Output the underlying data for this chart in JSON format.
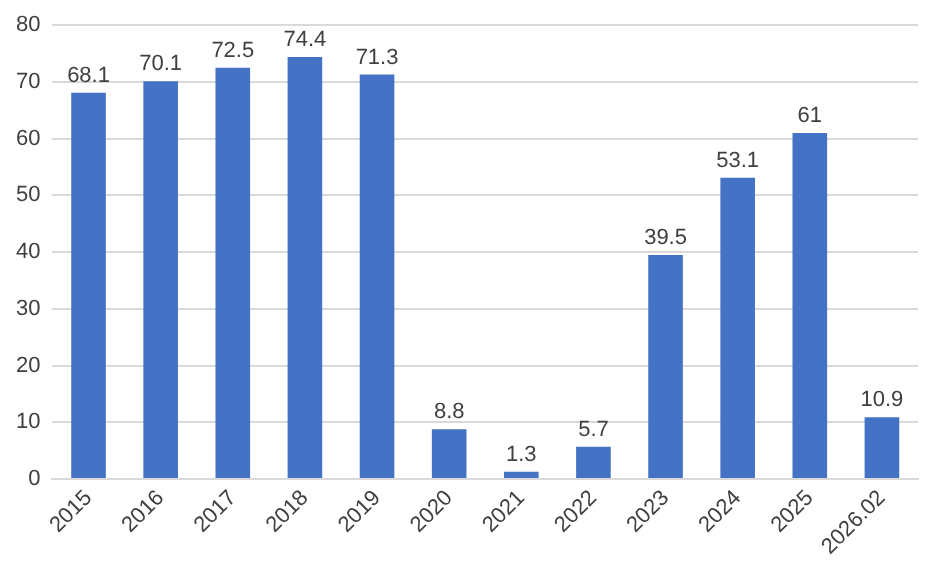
{
  "chart_data": {
    "type": "bar",
    "categories": [
      "2015",
      "2016",
      "2017",
      "2018",
      "2019",
      "2020",
      "2021",
      "2022",
      "2023",
      "2024",
      "2025",
      "2026.02"
    ],
    "values": [
      68.1,
      70.1,
      72.5,
      74.4,
      71.3,
      8.8,
      1.3,
      5.7,
      39.5,
      53.1,
      61,
      10.9
    ],
    "color": "#4472c4",
    "ylim": [
      0,
      80
    ],
    "yticks": [
      0,
      10,
      20,
      30,
      40,
      50,
      60,
      70,
      80
    ],
    "grid": "y",
    "data_labels": true,
    "legend": false
  }
}
